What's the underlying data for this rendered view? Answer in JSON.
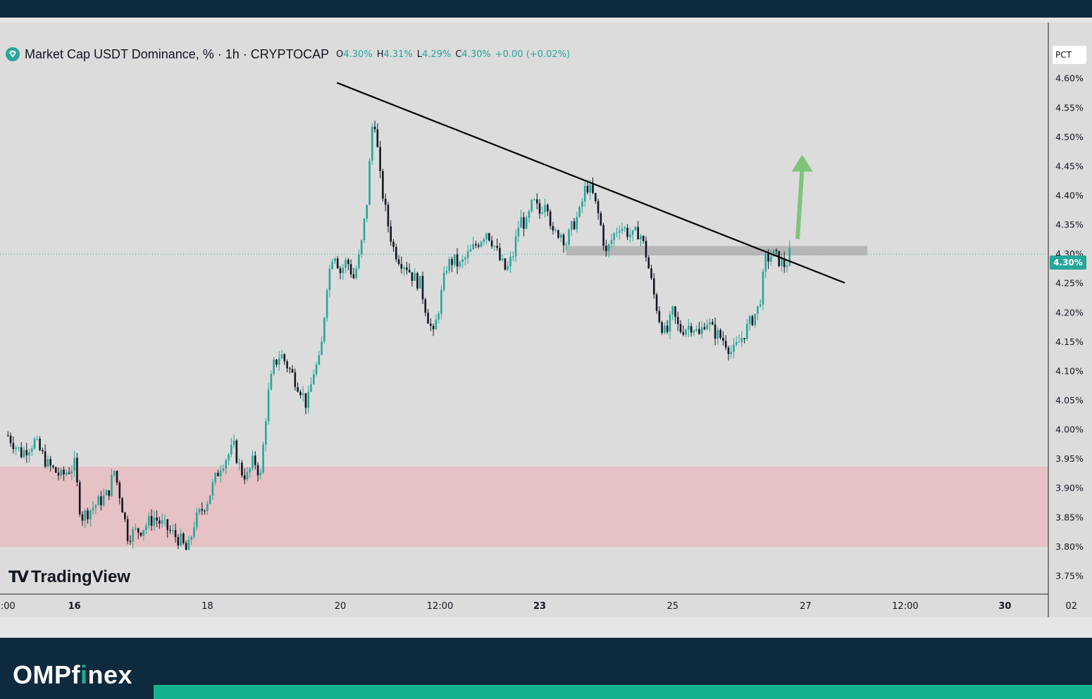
{
  "legend": {
    "title": "Market Cap USDT Dominance, % · 1h · CRYPTOCAP",
    "open_label": "O",
    "open": "4.30%",
    "high_label": "H",
    "high": "4.31%",
    "low_label": "L",
    "low": "4.29%",
    "close_label": "C",
    "close": "4.30%",
    "change": "+0.00 (+0.02%)"
  },
  "scale_button": "PCT",
  "last_price": "4.30%",
  "watermark": "TradingView",
  "footer": {
    "brand_a": "OMP",
    "brand_b": "f",
    "brand_hl": "i",
    "brand_c": "nex"
  },
  "colors": {
    "up": "#26a69a",
    "down": "#131722",
    "support_zone": "#e8bcc1",
    "resistance_zone": "#a9a9a9",
    "arrow": "#7fc47a",
    "trendline": "#000000"
  },
  "chart_data": {
    "type": "candlestick",
    "title": "Market Cap USDT Dominance, % · 1h · CRYPTOCAP",
    "ylabel": "%",
    "ylim": [
      3.7,
      4.655
    ],
    "y_ticks": [
      "3.75%",
      "3.80%",
      "3.85%",
      "3.90%",
      "3.95%",
      "4.00%",
      "4.05%",
      "4.10%",
      "4.15%",
      "4.20%",
      "4.25%",
      "4.30%",
      "4.35%",
      "4.40%",
      "4.45%",
      "4.50%",
      "4.55%",
      "4.60%"
    ],
    "y_tick_values": [
      3.75,
      3.8,
      3.85,
      3.9,
      3.95,
      4.0,
      4.05,
      4.1,
      4.15,
      4.2,
      4.25,
      4.3,
      4.35,
      4.4,
      4.45,
      4.5,
      4.55,
      4.6
    ],
    "x_ticks": [
      {
        "label": ":00",
        "t": 0
      },
      {
        "label": "16",
        "t": 10,
        "bold": true
      },
      {
        "label": "18",
        "t": 30
      },
      {
        "label": "20",
        "t": 50
      },
      {
        "label": "12:00",
        "t": 65
      },
      {
        "label": "23",
        "t": 80,
        "bold": true
      },
      {
        "label": "25",
        "t": 100
      },
      {
        "label": "27",
        "t": 120
      },
      {
        "label": "12:00",
        "t": 135
      },
      {
        "label": "30",
        "t": 150,
        "bold": true
      },
      {
        "label": "02",
        "t": 160
      }
    ],
    "x_range": [
      -1.2,
      163.1
    ],
    "candle_step": 0.4,
    "price_path": [
      [
        0,
        3.99
      ],
      [
        2,
        3.96
      ],
      [
        4,
        3.98
      ],
      [
        6,
        3.94
      ],
      [
        8,
        3.92
      ],
      [
        10,
        3.94
      ],
      [
        11,
        3.85
      ],
      [
        13,
        3.87
      ],
      [
        15,
        3.89
      ],
      [
        16,
        3.93
      ],
      [
        17,
        3.88
      ],
      [
        18,
        3.82
      ],
      [
        20,
        3.83
      ],
      [
        22,
        3.85
      ],
      [
        24,
        3.83
      ],
      [
        26,
        3.81
      ],
      [
        27,
        3.79
      ],
      [
        28,
        3.84
      ],
      [
        30,
        3.88
      ],
      [
        32,
        3.94
      ],
      [
        34,
        3.97
      ],
      [
        35,
        3.93
      ],
      [
        36,
        3.92
      ],
      [
        37,
        3.95
      ],
      [
        38,
        3.92
      ],
      [
        39,
        4.05
      ],
      [
        40,
        4.11
      ],
      [
        41,
        4.13
      ],
      [
        43,
        4.09
      ],
      [
        44,
        4.07
      ],
      [
        45,
        4.04
      ],
      [
        46,
        4.1
      ],
      [
        47,
        4.12
      ],
      [
        48,
        4.25
      ],
      [
        49,
        4.31
      ],
      [
        50,
        4.27
      ],
      [
        51,
        4.29
      ],
      [
        52,
        4.26
      ],
      [
        53,
        4.3
      ],
      [
        54,
        4.39
      ],
      [
        55,
        4.55
      ],
      [
        56,
        4.43
      ],
      [
        57,
        4.36
      ],
      [
        58,
        4.31
      ],
      [
        59,
        4.29
      ],
      [
        60,
        4.28
      ],
      [
        61,
        4.26
      ],
      [
        62,
        4.25
      ],
      [
        63,
        4.2
      ],
      [
        64,
        4.16
      ],
      [
        65,
        4.22
      ],
      [
        66,
        4.28
      ],
      [
        67,
        4.29
      ],
      [
        68,
        4.28
      ],
      [
        70,
        4.31
      ],
      [
        72,
        4.34
      ],
      [
        73,
        4.32
      ],
      [
        74,
        4.29
      ],
      [
        75,
        4.27
      ],
      [
        76,
        4.3
      ],
      [
        77,
        4.36
      ],
      [
        78,
        4.35
      ],
      [
        79,
        4.39
      ],
      [
        80,
        4.37
      ],
      [
        81,
        4.4
      ],
      [
        82,
        4.33
      ],
      [
        83,
        4.34
      ],
      [
        84,
        4.32
      ],
      [
        85,
        4.35
      ],
      [
        86,
        4.37
      ],
      [
        87,
        4.42
      ],
      [
        88,
        4.4
      ],
      [
        89,
        4.36
      ],
      [
        90,
        4.3
      ],
      [
        91,
        4.33
      ],
      [
        92,
        4.35
      ],
      [
        94,
        4.33
      ],
      [
        95,
        4.34
      ],
      [
        96,
        4.3
      ],
      [
        97,
        4.24
      ],
      [
        98,
        4.19
      ],
      [
        99,
        4.16
      ],
      [
        100,
        4.2
      ],
      [
        101,
        4.17
      ],
      [
        103,
        4.18
      ],
      [
        104,
        4.16
      ],
      [
        105,
        4.19
      ],
      [
        106,
        4.17
      ],
      [
        107,
        4.16
      ],
      [
        108,
        4.15
      ],
      [
        109,
        4.13
      ],
      [
        110,
        4.15
      ],
      [
        111,
        4.17
      ],
      [
        112,
        4.19
      ],
      [
        113,
        4.21
      ],
      [
        114,
        4.29
      ],
      [
        115,
        4.3
      ],
      [
        116,
        4.29
      ],
      [
        117,
        4.28
      ],
      [
        117.6,
        4.3
      ]
    ],
    "trendline": {
      "from": [
        49.5,
        4.593
      ],
      "to": [
        125.9,
        4.251
      ]
    },
    "resistance_zone": {
      "t_from": 84,
      "t_to": 129.3,
      "y_from": 4.298,
      "y_to": 4.314
    },
    "support_zone": {
      "y_from": 3.8,
      "y_to": 3.937
    },
    "last_price_line": 4.3,
    "breakout_arrow": {
      "from": [
        118.8,
        4.326
      ],
      "to": [
        119.5,
        4.47
      ]
    }
  }
}
